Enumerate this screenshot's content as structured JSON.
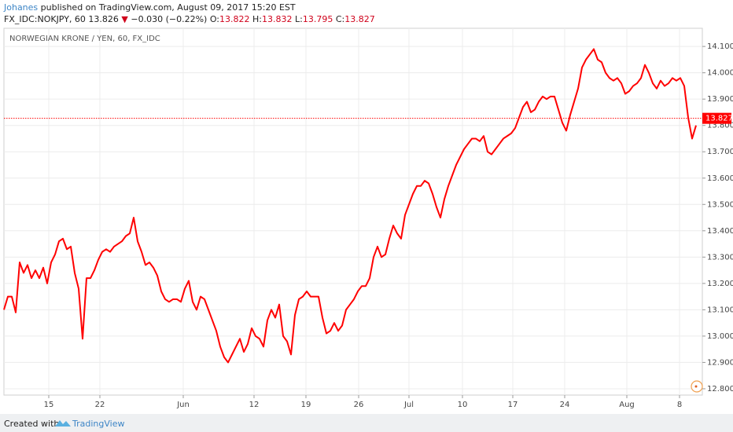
{
  "header": {
    "author": "Johanes",
    "published": "published on TradingView.com, August 09, 2017 15:20 EST",
    "symbol": "FX_IDC:NOKJPY, 60",
    "price": "13.826",
    "arrow": "▼",
    "change": "−0.030 (−0.22%)",
    "open_label": "O:",
    "open": "13.822",
    "high_label": "H:",
    "high": "13.832",
    "low_label": "L:",
    "low": "13.795",
    "close_label": "C:",
    "close": "13.827"
  },
  "footer": {
    "created": "Created with",
    "brand": "TradingView"
  },
  "chart_data": {
    "type": "line",
    "title": "NORWEGIAN KRONE / YEN, 60, FX_IDC",
    "color": "#ff0000",
    "grid": true,
    "last_price": 13.827,
    "xlim": [
      0,
      177.6
    ],
    "xticks": [
      {
        "value": 11.4,
        "label": "15"
      },
      {
        "value": 24.4,
        "label": "22"
      },
      {
        "value": 45.6,
        "label": "Jun"
      },
      {
        "value": 63.6,
        "label": "12"
      },
      {
        "value": 76.8,
        "label": "19"
      },
      {
        "value": 90.2,
        "label": "26"
      },
      {
        "value": 103,
        "label": "Jul"
      },
      {
        "value": 116.6,
        "label": "10"
      },
      {
        "value": 129.4,
        "label": "17"
      },
      {
        "value": 142.6,
        "label": "24"
      },
      {
        "value": 158.4,
        "label": "Aug"
      },
      {
        "value": 171.8,
        "label": "8"
      }
    ],
    "ylim": [
      12.776,
      14.169
    ],
    "yticks": [
      {
        "value": 12.8,
        "label": "12.800"
      },
      {
        "value": 12.9,
        "label": "12.900"
      },
      {
        "value": 13.0,
        "label": "13.000"
      },
      {
        "value": 13.1,
        "label": "13.100"
      },
      {
        "value": 13.2,
        "label": "13.200"
      },
      {
        "value": 13.3,
        "label": "13.300"
      },
      {
        "value": 13.4,
        "label": "13.400"
      },
      {
        "value": 13.5,
        "label": "13.500"
      },
      {
        "value": 13.6,
        "label": "13.600"
      },
      {
        "value": 13.7,
        "label": "13.700"
      },
      {
        "value": 13.8,
        "label": "13.800"
      },
      {
        "value": 13.9,
        "label": "13.900"
      },
      {
        "value": 14.0,
        "label": "14.000"
      },
      {
        "value": 14.1,
        "label": "14.100"
      }
    ],
    "x": [
      0,
      1,
      2,
      3,
      4,
      5,
      6,
      7,
      8,
      9,
      10,
      11,
      12,
      13,
      14,
      15,
      16,
      17,
      18,
      19,
      20,
      21,
      22,
      23,
      24,
      25,
      26,
      27,
      28,
      29,
      30,
      31,
      32,
      33,
      34,
      35,
      36,
      37,
      38,
      39,
      40,
      41,
      42,
      43,
      44,
      45,
      46,
      47,
      48,
      49,
      50,
      51,
      52,
      53,
      54,
      55,
      56,
      57,
      58,
      59,
      60,
      61,
      62,
      63,
      64,
      65,
      66,
      67,
      68,
      69,
      70,
      71,
      72,
      73,
      74,
      75,
      76,
      77,
      78,
      79,
      80,
      81,
      82,
      83,
      84,
      85,
      86,
      87,
      88,
      89,
      90,
      91,
      92,
      93,
      94,
      95,
      96,
      97,
      98,
      99,
      100,
      101,
      102,
      103,
      104,
      105,
      106,
      107,
      108,
      109,
      110,
      111,
      112,
      113,
      114,
      115,
      116,
      117,
      118,
      119,
      120,
      121,
      122,
      123,
      124,
      125,
      126,
      127,
      128,
      129,
      130,
      131,
      132,
      133,
      134,
      135,
      136,
      137,
      138,
      139,
      140,
      141,
      142,
      143,
      144,
      145,
      146,
      147,
      148,
      149,
      150,
      151,
      152,
      153,
      154,
      155,
      156,
      157,
      158,
      159,
      160,
      161,
      162,
      163,
      164,
      165,
      166,
      167,
      168,
      169,
      170,
      171,
      172,
      173,
      174,
      175,
      176
    ],
    "values": [
      13.1,
      13.15,
      13.15,
      13.09,
      13.28,
      13.24,
      13.27,
      13.22,
      13.25,
      13.22,
      13.26,
      13.2,
      13.28,
      13.31,
      13.36,
      13.37,
      13.33,
      13.34,
      13.24,
      13.18,
      12.99,
      13.22,
      13.22,
      13.25,
      13.29,
      13.32,
      13.33,
      13.32,
      13.34,
      13.35,
      13.36,
      13.38,
      13.39,
      13.45,
      13.36,
      13.32,
      13.27,
      13.28,
      13.26,
      13.23,
      13.17,
      13.14,
      13.13,
      13.14,
      13.14,
      13.13,
      13.18,
      13.21,
      13.13,
      13.1,
      13.15,
      13.14,
      13.1,
      13.06,
      13.02,
      12.96,
      12.92,
      12.9,
      12.93,
      12.96,
      12.99,
      12.94,
      12.97,
      13.03,
      13.0,
      12.99,
      12.96,
      13.06,
      13.1,
      13.07,
      13.12,
      13.0,
      12.98,
      12.93,
      13.08,
      13.14,
      13.15,
      13.17,
      13.15,
      13.15,
      13.15,
      13.07,
      13.01,
      13.02,
      13.05,
      13.02,
      13.04,
      13.1,
      13.12,
      13.14,
      13.17,
      13.19,
      13.19,
      13.22,
      13.3,
      13.34,
      13.3,
      13.31,
      13.37,
      13.42,
      13.39,
      13.37,
      13.46,
      13.5,
      13.54,
      13.57,
      13.57,
      13.59,
      13.58,
      13.54,
      13.49,
      13.45,
      13.52,
      13.57,
      13.61,
      13.65,
      13.68,
      13.71,
      13.73,
      13.75,
      13.75,
      13.74,
      13.76,
      13.7,
      13.69,
      13.71,
      13.73,
      13.75,
      13.76,
      13.77,
      13.79,
      13.83,
      13.87,
      13.89,
      13.85,
      13.86,
      13.89,
      13.91,
      13.9,
      13.91,
      13.91,
      13.86,
      13.81,
      13.78,
      13.84,
      13.89,
      13.94,
      14.02,
      14.05,
      14.07,
      14.09,
      14.05,
      14.04,
      14.0,
      13.98,
      13.97,
      13.98,
      13.96,
      13.92,
      13.93,
      13.95,
      13.96,
      13.98,
      14.03,
      14.0,
      13.96,
      13.94,
      13.97,
      13.95,
      13.96,
      13.98,
      13.97,
      13.98,
      13.95,
      13.83,
      13.75,
      13.8
    ]
  }
}
